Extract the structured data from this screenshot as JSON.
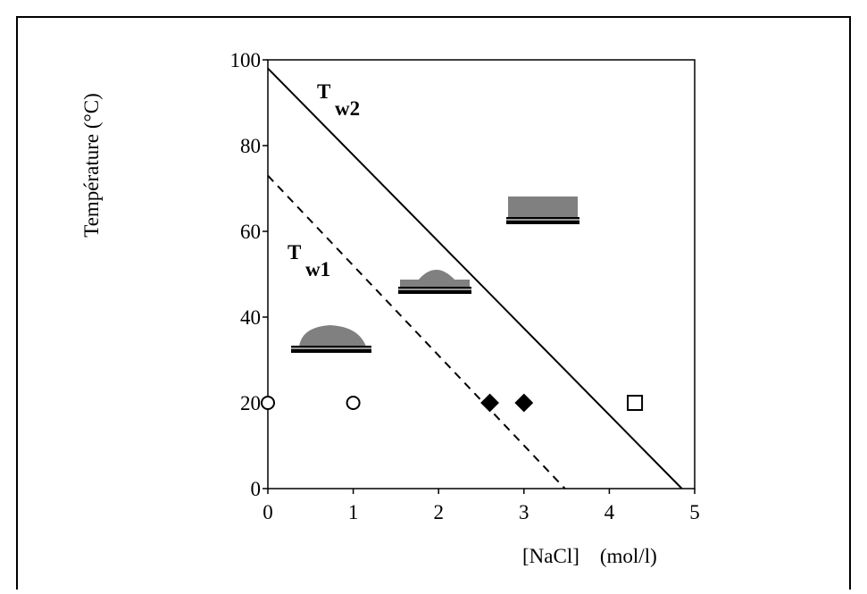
{
  "chart_data": {
    "type": "scatter",
    "xlabel": "[NaCl]    (mol/l)",
    "ylabel": "Température (°C)",
    "xlim": [
      0,
      5
    ],
    "xticks": [
      0,
      1,
      2,
      3,
      4,
      5
    ],
    "ylim": [
      0,
      100
    ],
    "yticks": [
      0,
      20,
      40,
      60,
      80,
      100
    ],
    "series": [
      {
        "style": "solid-line",
        "color": "#000000",
        "x": [
          0,
          4.85
        ],
        "values": [
          98,
          0
        ]
      },
      {
        "style": "dashed-line",
        "color": "#000000",
        "x": [
          0,
          3.48
        ],
        "values": [
          73,
          0
        ]
      },
      {
        "style": "open-circle",
        "color": "#000000",
        "x": [
          0,
          1
        ],
        "values": [
          20,
          20
        ]
      },
      {
        "style": "filled-diamond",
        "color": "#000000",
        "x": [
          2.6,
          3
        ],
        "values": [
          20,
          20
        ]
      },
      {
        "style": "open-square",
        "color": "#000000",
        "x": [
          4.3
        ],
        "values": [
          20
        ]
      }
    ],
    "annotations": [
      {
        "text": "T",
        "subscript": "w2"
      },
      {
        "text": "T",
        "subscript": "w1"
      }
    ]
  }
}
